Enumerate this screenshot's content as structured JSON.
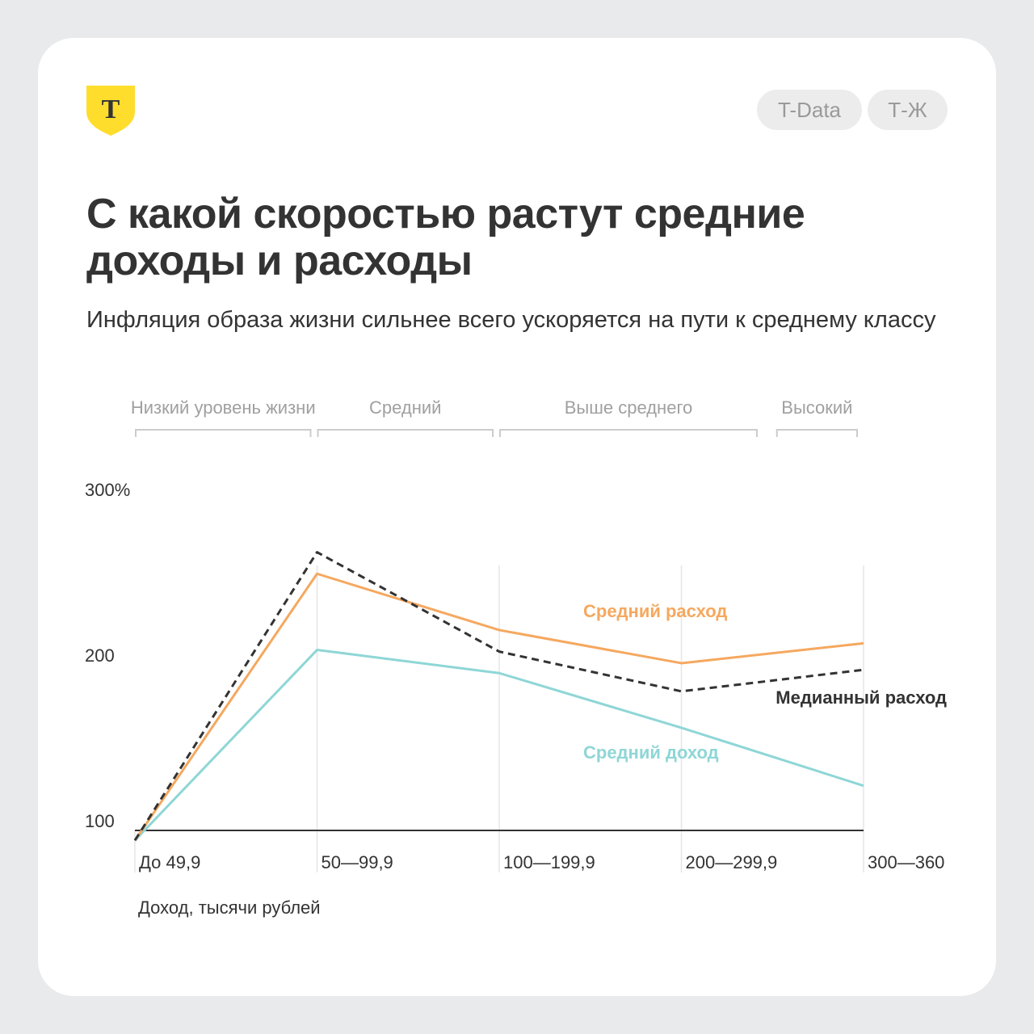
{
  "header": {
    "logo_letter": "Т",
    "tags": [
      "T-Data",
      "Т-Ж"
    ]
  },
  "title": "С какой скоростью растут средние доходы и расходы",
  "subtitle": "Инфляция образа жизни сильнее всего ускоряется на пути к среднему классу",
  "colors": {
    "brand_yellow": "#ffdd2d",
    "average_expense": "#f5a85f",
    "median_expense": "#333333",
    "average_income": "#8fd6d6"
  },
  "chart_data": {
    "type": "line",
    "title": "С какой скоростью растут средние доходы и расходы",
    "xlabel": "Доход, тысячи рублей",
    "ylabel": "",
    "categories": [
      "До 49,9",
      "50—99,9",
      "100—199,9",
      "200—299,9",
      "300—360"
    ],
    "yticks": [
      "100",
      "200",
      "300%"
    ],
    "ylim": [
      100,
      300
    ],
    "groups": [
      {
        "label": "Низкий уровень жизни",
        "from": 0,
        "to": 1
      },
      {
        "label": "Средний",
        "from": 1,
        "to": 2
      },
      {
        "label": "Выше среднего",
        "from": 2,
        "to": 3.45
      },
      {
        "label": "Высокий",
        "from": 3.52,
        "to": 4
      }
    ],
    "series": [
      {
        "name": "Средний расход",
        "values": [
          94,
          255,
          221,
          201,
          213
        ],
        "style": "solid",
        "color": "#f5a85f"
      },
      {
        "name": "Медианный расход",
        "values": [
          94,
          268,
          208,
          184,
          197
        ],
        "style": "dashed",
        "color": "#333333"
      },
      {
        "name": "Средний доход",
        "values": [
          94,
          209,
          195,
          162,
          127
        ],
        "style": "solid",
        "color": "#8fd6d6"
      }
    ],
    "grid": true
  }
}
